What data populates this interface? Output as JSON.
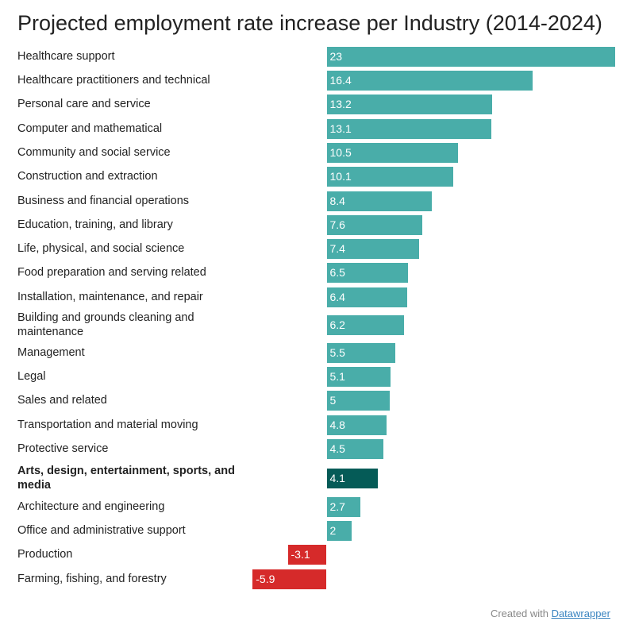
{
  "chart_data": {
    "type": "bar",
    "orientation": "horizontal",
    "title": "Projected employment rate increase per Industry (2014-2024)",
    "categories": [
      "Healthcare support",
      "Healthcare practitioners and technical",
      "Personal care and service",
      "Computer and mathematical",
      "Community and social service",
      "Construction and extraction",
      "Business and financial operations",
      "Education, training, and library",
      "Life, physical, and social science",
      "Food preparation and serving related",
      "Installation, maintenance, and repair",
      "Building and grounds cleaning and maintenance",
      "Management",
      "Legal",
      "Sales and related",
      "Transportation and material moving",
      "Protective service",
      "Arts, design, entertainment, sports, and media",
      "Architecture and engineering",
      "Office and administrative support",
      "Production",
      "Farming, fishing, and forestry"
    ],
    "values": [
      23,
      16.4,
      13.2,
      13.1,
      10.5,
      10.1,
      8.4,
      7.6,
      7.4,
      6.5,
      6.4,
      6.2,
      5.5,
      5.1,
      5,
      4.8,
      4.5,
      4.1,
      2.7,
      2,
      -3.1,
      -5.9
    ],
    "value_labels": [
      "23",
      "16.4",
      "13.2",
      "13.1",
      "10.5",
      "10.1",
      "8.4",
      "7.6",
      "7.4",
      "6.5",
      "6.4",
      "6.2",
      "5.5",
      "5.1",
      "5",
      "4.8",
      "4.5",
      "4.1",
      "2.7",
      "2",
      "-3.1",
      "-5.9"
    ],
    "highlighted_category": "Arts, design, entertainment, sports, and media",
    "colors": {
      "positive": "#49ada9",
      "negative": "#d62a2a",
      "highlight": "#055b57"
    },
    "xlim": [
      -5.9,
      23
    ],
    "grid": false,
    "legend": "none"
  },
  "footer": {
    "prefix": "Created with ",
    "link": "Datawrapper"
  }
}
